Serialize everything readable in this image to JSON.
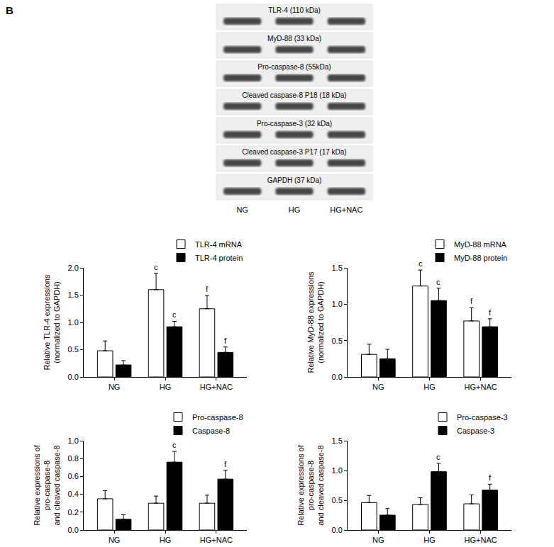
{
  "panel_label": "B",
  "blot": {
    "rows": [
      "TLR-4 (110 kDa)",
      "MyD-88 (33 kDa)",
      "Pro-caspase-8 (55kDa)",
      "Cleaved caspase-8 P18 (18 kDa)",
      "Pro-caspase-3 (32 kDa)",
      "Cleaved caspase-3 P17 (17 kDa)",
      "GAPDH (37 kDa)"
    ],
    "lanes": [
      "NG",
      "HG",
      "HG+NAC"
    ]
  },
  "chart_data": [
    {
      "type": "bar",
      "categories": [
        "NG",
        "HG",
        "HG+NAC"
      ],
      "y_label": "Relative TLR-4 expressions\n(normalized to GAPDH)",
      "series": [
        {
          "name": "TLR-4 mRNA",
          "color": "#ffffff",
          "values": [
            0.48,
            1.6,
            1.25
          ],
          "errors": [
            0.18,
            0.3,
            0.25
          ]
        },
        {
          "name": "TLR-4 protein",
          "color": "#000000",
          "values": [
            0.22,
            0.92,
            0.45
          ],
          "errors": [
            0.08,
            0.1,
            0.1
          ]
        }
      ],
      "ylim": [
        0,
        2.0
      ],
      "yticks": [
        {
          "value": 0,
          "label": "0.0"
        },
        {
          "value": 0.5,
          "label": "0.5"
        },
        {
          "value": 1,
          "label": "1.0"
        },
        {
          "value": 1.5,
          "label": "1.5"
        },
        {
          "value": 2,
          "label": "2.0"
        }
      ],
      "legend": "top-right",
      "annotations": [
        {
          "text": "c",
          "category": "HG",
          "series": "TLR-4 mRNA"
        },
        {
          "text": "c",
          "category": "HG",
          "series": "TLR-4 protein"
        },
        {
          "text": "f",
          "category": "HG+NAC",
          "series": "TLR-4 mRNA"
        },
        {
          "text": "f",
          "category": "HG+NAC",
          "series": "TLR-4 protein"
        }
      ]
    },
    {
      "type": "bar",
      "categories": [
        "NG",
        "HG",
        "HG+NAC"
      ],
      "y_label": "Relative MyD-88 expressions\n(normalized to GAPDH)",
      "series": [
        {
          "name": "MyD-88 mRNA",
          "color": "#ffffff",
          "values": [
            0.31,
            1.25,
            0.77
          ],
          "errors": [
            0.14,
            0.22,
            0.18
          ]
        },
        {
          "name": "MyD-88 protein",
          "color": "#000000",
          "values": [
            0.25,
            1.05,
            0.69
          ],
          "errors": [
            0.13,
            0.17,
            0.11
          ]
        }
      ],
      "ylim": [
        0,
        1.5
      ],
      "yticks": [
        {
          "value": 0,
          "label": "0.0"
        },
        {
          "value": 0.5,
          "label": "0.5"
        },
        {
          "value": 1,
          "label": "1.0"
        },
        {
          "value": 1.5,
          "label": "1.5"
        }
      ],
      "legend": "top-right",
      "annotations": [
        {
          "text": "c",
          "category": "HG",
          "series": "MyD-88 mRNA"
        },
        {
          "text": "c",
          "category": "HG",
          "series": "MyD-88 protein"
        },
        {
          "text": "f",
          "category": "HG+NAC",
          "series": "MyD-88 mRNA"
        },
        {
          "text": "f",
          "category": "HG+NAC",
          "series": "MyD-88 protein"
        }
      ]
    },
    {
      "type": "bar",
      "categories": [
        "NG",
        "HG",
        "HG+NAC"
      ],
      "y_label": "Relative expressions of\npro-caspase-8\nand cleaved caspase-8",
      "series": [
        {
          "name": "Pro-caspase-8",
          "color": "#ffffff",
          "values": [
            0.35,
            0.3,
            0.3
          ],
          "errors": [
            0.09,
            0.08,
            0.09
          ]
        },
        {
          "name": "Caspase-8",
          "color": "#000000",
          "values": [
            0.12,
            0.76,
            0.57
          ],
          "errors": [
            0.05,
            0.12,
            0.1
          ]
        }
      ],
      "ylim": [
        0,
        1.0
      ],
      "yticks": [
        {
          "value": 0,
          "label": "0.0"
        },
        {
          "value": 0.2,
          "label": "0.2"
        },
        {
          "value": 0.4,
          "label": "0.4"
        },
        {
          "value": 0.6,
          "label": "0.6"
        },
        {
          "value": 0.8,
          "label": "0.8"
        },
        {
          "value": 1,
          "label": "1.0"
        }
      ],
      "legend": "top-right",
      "annotations": [
        {
          "text": "c",
          "category": "HG",
          "series": "Caspase-8"
        },
        {
          "text": "f",
          "category": "HG+NAC",
          "series": "Caspase-8"
        }
      ]
    },
    {
      "type": "bar",
      "categories": [
        "NG",
        "HG",
        "HG+NAC"
      ],
      "y_label": "Relative expressions of\npro-caspase-8\nand cleaved caspase-8",
      "series": [
        {
          "name": "Pro-caspase-3",
          "color": "#ffffff",
          "values": [
            0.46,
            0.43,
            0.44
          ],
          "errors": [
            0.12,
            0.11,
            0.15
          ]
        },
        {
          "name": "Caspase-3",
          "color": "#000000",
          "values": [
            0.25,
            0.98,
            0.67
          ],
          "errors": [
            0.11,
            0.14,
            0.1
          ]
        }
      ],
      "ylim": [
        0,
        1.5
      ],
      "yticks": [
        {
          "value": 0,
          "label": "0.0"
        },
        {
          "value": 0.5,
          "label": "0.5"
        },
        {
          "value": 1,
          "label": "1.0"
        },
        {
          "value": 1.5,
          "label": "1.5"
        }
      ],
      "legend": "top-right",
      "annotations": [
        {
          "text": "c",
          "category": "HG",
          "series": "Caspase-3"
        },
        {
          "text": "f",
          "category": "HG+NAC",
          "series": "Caspase-3"
        }
      ]
    }
  ]
}
